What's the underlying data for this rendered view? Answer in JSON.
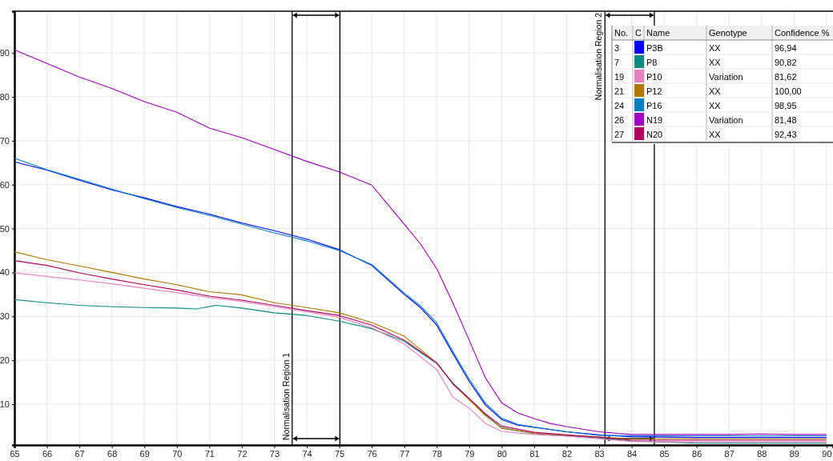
{
  "chart_data": {
    "type": "line",
    "xlim": [
      65,
      90.2
    ],
    "ylim": [
      0.7,
      99.5
    ],
    "xticks": [
      65,
      66,
      67,
      68,
      69,
      70,
      71,
      72,
      73,
      74,
      75,
      76,
      77,
      78,
      79,
      80,
      81,
      82,
      83,
      84,
      85,
      86,
      87,
      88,
      89,
      90
    ],
    "yticks": [
      10,
      20,
      30,
      40,
      50,
      60,
      70,
      80,
      90
    ],
    "grid": true,
    "legend": "top right",
    "ref_lines": [
      {
        "axis": "x",
        "value": 73.55,
        "label": "Normalisation Region 1",
        "color": "#000000"
      },
      {
        "axis": "x",
        "value": 75.02,
        "color": "#000000"
      },
      {
        "axis": "x",
        "value": 83.18,
        "label": "Normalisation Region 2",
        "color": "#000000"
      },
      {
        "axis": "x",
        "value": 84.7,
        "color": "#000000"
      }
    ],
    "annotations": [
      "No.",
      "C",
      "Name",
      "Genotype",
      "Confidence %",
      "3",
      "XX",
      "96,94",
      "7",
      "XX",
      "90,82",
      "19",
      "Variation",
      "81,62",
      "21",
      "XX",
      "100,00",
      "24",
      "XX",
      "98,95",
      "26",
      "Variation",
      "81,48",
      "27",
      "XX",
      "92,43"
    ],
    "series": [
      {
        "name": "P3B",
        "color": "#0000ff",
        "x": [
          65,
          66,
          67,
          68,
          69,
          70,
          71,
          72,
          73,
          74,
          75,
          76,
          77,
          77.5,
          78,
          78.5,
          79,
          79.5,
          80,
          80.5,
          81,
          82,
          83,
          84,
          86,
          88,
          90
        ],
        "values": [
          65.2,
          63.3,
          61,
          58.8,
          57,
          55,
          53.3,
          51.3,
          49.5,
          47.6,
          45.2,
          41.6,
          35,
          32,
          28,
          21.5,
          15.2,
          9.8,
          6.5,
          5.2,
          4.7,
          3.7,
          3,
          2.6,
          2.4,
          2.4,
          2.4
        ]
      },
      {
        "name": "P8",
        "color": "#0a8a80",
        "x": [
          65,
          66,
          67,
          68,
          69,
          70,
          70.6,
          71.2,
          72,
          73,
          74,
          75,
          76,
          77,
          78,
          78.5,
          79,
          79.5,
          80,
          81,
          82,
          83,
          84,
          86,
          88,
          90
        ],
        "values": [
          33.8,
          33.1,
          32.5,
          32.2,
          32,
          31.9,
          31.7,
          32.5,
          31.9,
          30.8,
          30.2,
          28.9,
          27.2,
          24.3,
          19.3,
          14.8,
          11.3,
          7.6,
          4.6,
          3.3,
          2.8,
          2.3,
          1.6,
          1.1,
          1.1,
          1.1
        ]
      },
      {
        "name": "P10",
        "color": "#e680c0",
        "x": [
          65,
          66,
          67,
          68,
          69,
          70,
          71,
          72,
          73,
          74,
          75,
          76,
          77,
          78,
          78.5,
          79,
          79.5,
          80,
          81,
          82,
          83,
          84,
          86,
          88,
          90
        ],
        "values": [
          39.9,
          39.1,
          38.3,
          37.4,
          36.4,
          35.4,
          34.3,
          33.4,
          32.2,
          31,
          29.8,
          27.4,
          23.7,
          17.9,
          11.6,
          9.1,
          5.6,
          3.8,
          3.1,
          2.7,
          2.1,
          1.5,
          1.4,
          1.4,
          1.4
        ]
      },
      {
        "name": "P12",
        "color": "#b07800",
        "x": [
          65,
          66,
          67,
          68,
          69,
          70,
          71,
          72,
          73,
          74,
          75,
          76,
          77,
          78,
          78.5,
          79,
          79.5,
          80,
          81,
          82,
          83,
          84,
          86,
          88,
          90
        ],
        "values": [
          44.7,
          42.9,
          41.5,
          40,
          38.5,
          37.2,
          35.6,
          34.9,
          33.1,
          32,
          30.8,
          28.6,
          25.5,
          19.4,
          14.6,
          11,
          7.4,
          4.5,
          3.4,
          2.9,
          2.5,
          2.1,
          2.1,
          2.1,
          2.1
        ]
      },
      {
        "name": "P16",
        "color": "#0080c0",
        "x": [
          65,
          66,
          67,
          68,
          69,
          70,
          71,
          72,
          73,
          74,
          75,
          76,
          77,
          77.5,
          78,
          78.5,
          79,
          79.5,
          80,
          80.5,
          81,
          82,
          83,
          84,
          86,
          88,
          90
        ],
        "values": [
          66,
          63.4,
          61.2,
          59,
          56.8,
          54.8,
          53,
          51,
          49,
          47.2,
          45,
          41.8,
          35.3,
          32.4,
          28.5,
          22,
          15.7,
          10.2,
          6.8,
          5.4,
          4.8,
          3.7,
          2.9,
          2.8,
          2.8,
          2.8,
          2.8
        ]
      },
      {
        "name": "N19",
        "color": "#a000c0",
        "x": [
          65,
          66,
          67,
          68,
          69,
          70,
          71,
          72,
          73,
          74,
          75,
          76,
          77,
          77.5,
          78,
          78.5,
          79,
          79.5,
          80,
          80.5,
          81,
          81.5,
          82,
          83,
          84,
          85,
          86,
          87,
          88,
          89,
          90
        ],
        "values": [
          90.7,
          87.6,
          84.5,
          81.9,
          78.9,
          76.5,
          72.9,
          70.7,
          68,
          65.3,
          62.9,
          59.9,
          51,
          46.5,
          40.9,
          33,
          24.6,
          16,
          10.3,
          8,
          6.7,
          5.6,
          4.9,
          3.7,
          3.1,
          3.1,
          3.1,
          3.1,
          3.2,
          3.1,
          3.1
        ]
      },
      {
        "name": "N20",
        "color": "#b00060",
        "x": [
          65,
          66,
          67,
          68,
          69,
          70,
          71,
          72,
          73,
          74,
          75,
          76,
          77,
          78,
          78.5,
          79,
          79.5,
          80,
          81,
          82,
          83,
          84,
          86,
          88,
          90
        ],
        "values": [
          42.7,
          41.6,
          39.9,
          38.5,
          37.2,
          36,
          34.6,
          33.7,
          32.5,
          31.3,
          30.2,
          28,
          24.6,
          19.4,
          14.6,
          11.3,
          7.8,
          5,
          3.6,
          3,
          2.5,
          1.8,
          1.8,
          1.8,
          1.8
        ]
      }
    ]
  }
}
